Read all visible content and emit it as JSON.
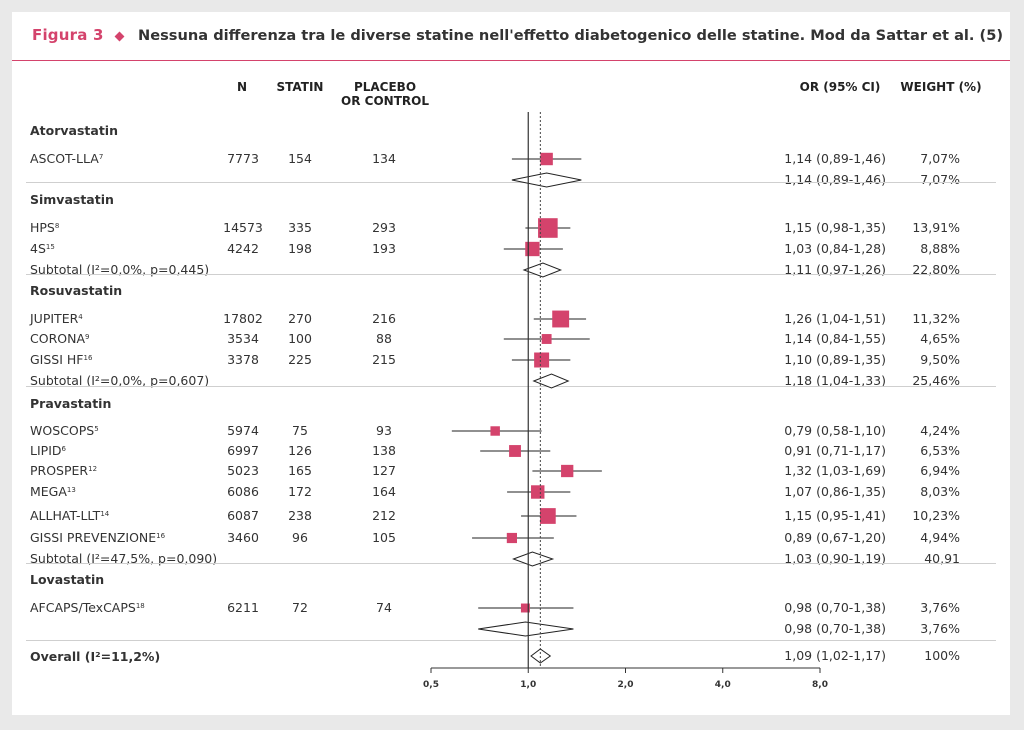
{
  "figure": {
    "label": "Figura 3",
    "title": "Nessuna differenza tra le diverse statine nell'effetto diabetogenico delle statine. Mod da Sattar et al. (5)"
  },
  "columns": {
    "n": "N",
    "statin": "STATIN",
    "placebo_line1": "PLACEBO",
    "placebo_line2": "OR CONTROL",
    "or": "OR (95% CI)",
    "weight": "WEIGHT (%)"
  },
  "groups": [
    {
      "name": "Atorvastatin",
      "studies": [
        {
          "name": "ASCOT-LLA",
          "ref": "7",
          "n": "7773",
          "statin": "154",
          "placebo": "134",
          "or": "1,14 (0,89-1,46)",
          "weight": "7,07%"
        }
      ],
      "subtotal": {
        "label": "",
        "or": "1,14 (0,89-1,46)",
        "weight": "7,07%"
      }
    },
    {
      "name": "Simvastatin",
      "studies": [
        {
          "name": "HPS",
          "ref": "8",
          "n": "14573",
          "statin": "335",
          "placebo": "293",
          "or": "1,15 (0,98-1,35)",
          "weight": "13,91%"
        },
        {
          "name": "4S",
          "ref": "15",
          "n": "4242",
          "statin": "198",
          "placebo": "193",
          "or": "1,03 (0,84-1,28)",
          "weight": "8,88%"
        }
      ],
      "subtotal": {
        "label": "Subtotal (I²=0,0%, p=0,445)",
        "or": "1,11 (0,97-1,26)",
        "weight": "22,80%"
      }
    },
    {
      "name": "Rosuvastatin",
      "studies": [
        {
          "name": "JUPITER",
          "ref": "4",
          "n": "17802",
          "statin": "270",
          "placebo": "216",
          "or": "1,26 (1,04-1,51)",
          "weight": "11,32%"
        },
        {
          "name": "CORONA",
          "ref": "9",
          "n": "3534",
          "statin": "100",
          "placebo": "88",
          "or": "1,14 (0,84-1,55)",
          "weight": "4,65%"
        },
        {
          "name": "GISSI HF",
          "ref": "16",
          "n": "3378",
          "statin": "225",
          "placebo": "215",
          "or": "1,10 (0,89-1,35)",
          "weight": "9,50%"
        }
      ],
      "subtotal": {
        "label": "Subtotal (I²=0,0%, p=0,607)",
        "or": "1,18 (1,04-1,33)",
        "weight": "25,46%"
      }
    },
    {
      "name": "Pravastatin",
      "studies": [
        {
          "name": "WOSCOPS",
          "ref": "5",
          "n": "5974",
          "statin": "75",
          "placebo": "93",
          "or": "0,79 (0,58-1,10)",
          "weight": "4,24%"
        },
        {
          "name": "LIPID",
          "ref": "6",
          "n": "6997",
          "statin": "126",
          "placebo": "138",
          "or": "0,91 (0,71-1,17)",
          "weight": "6,53%"
        },
        {
          "name": "PROSPER",
          "ref": "12",
          "n": "5023",
          "statin": "165",
          "placebo": "127",
          "or": "1,32 (1,03-1,69)",
          "weight": "6,94%"
        },
        {
          "name": "MEGA",
          "ref": "13",
          "n": "6086",
          "statin": "172",
          "placebo": "164",
          "or": "1,07 (0,86-1,35)",
          "weight": "8,03%"
        },
        {
          "name": "ALLHAT-LLT",
          "ref": "14",
          "n": "6087",
          "statin": "238",
          "placebo": "212",
          "or": "1,15 (0,95-1,41)",
          "weight": "10,23%"
        },
        {
          "name": "GISSI PREVENZIONE",
          "ref": "16",
          "n": "3460",
          "statin": "96",
          "placebo": "105",
          "or": "0,89 (0,67-1,20)",
          "weight": "4,94%"
        }
      ],
      "subtotal": {
        "label": "Subtotal (I²=47,5%, p=0,090)",
        "or": "1,03 (0,90-1,19)",
        "weight": "40,91"
      }
    },
    {
      "name": "Lovastatin",
      "studies": [
        {
          "name": "AFCAPS/TexCAPS",
          "ref": "18",
          "n": "6211",
          "statin": "72",
          "placebo": "74",
          "or": "0,98 (0,70-1,38)",
          "weight": "3,76%"
        }
      ],
      "subtotal": {
        "label": "",
        "or": "0,98 (0,70-1,38)",
        "weight": "3,76%"
      }
    }
  ],
  "overall": {
    "label": "Overall (I²=11,2%)",
    "or": "1,09 (1,02-1,17)",
    "weight": "100%"
  },
  "chart_data": {
    "type": "forest",
    "title": "Nessuna differenza tra le diverse statine nell'effetto diabetogenico delle statine. Mod da Sattar et al. (5)",
    "x_scale": "log",
    "x_ticks": [
      0.5,
      1.0,
      2.0,
      4.0,
      8.0
    ],
    "x_tick_labels": [
      "0,5",
      "1,0",
      "2,0",
      "4,0",
      "8,0"
    ],
    "reference_line": 1.0,
    "overall_line": 1.09,
    "studies": [
      {
        "name": "ASCOT-LLA",
        "or": 1.14,
        "lo": 0.89,
        "hi": 1.46,
        "weight": 7.07
      },
      {
        "name": "HPS",
        "or": 1.15,
        "lo": 0.98,
        "hi": 1.35,
        "weight": 13.91
      },
      {
        "name": "4S",
        "or": 1.03,
        "lo": 0.84,
        "hi": 1.28,
        "weight": 8.88
      },
      {
        "name": "JUPITER",
        "or": 1.26,
        "lo": 1.04,
        "hi": 1.51,
        "weight": 11.32
      },
      {
        "name": "CORONA",
        "or": 1.14,
        "lo": 0.84,
        "hi": 1.55,
        "weight": 4.65
      },
      {
        "name": "GISSI HF",
        "or": 1.1,
        "lo": 0.89,
        "hi": 1.35,
        "weight": 9.5
      },
      {
        "name": "WOSCOPS",
        "or": 0.79,
        "lo": 0.58,
        "hi": 1.1,
        "weight": 4.24
      },
      {
        "name": "LIPID",
        "or": 0.91,
        "lo": 0.71,
        "hi": 1.17,
        "weight": 6.53
      },
      {
        "name": "PROSPER",
        "or": 1.32,
        "lo": 1.03,
        "hi": 1.69,
        "weight": 6.94
      },
      {
        "name": "MEGA",
        "or": 1.07,
        "lo": 0.86,
        "hi": 1.35,
        "weight": 8.03
      },
      {
        "name": "ALLHAT-LLT",
        "or": 1.15,
        "lo": 0.95,
        "hi": 1.41,
        "weight": 10.23
      },
      {
        "name": "GISSI PREVENZIONE",
        "or": 0.89,
        "lo": 0.67,
        "hi": 1.2,
        "weight": 4.94
      },
      {
        "name": "AFCAPS/TexCAPS",
        "or": 0.98,
        "lo": 0.7,
        "hi": 1.38,
        "weight": 3.76
      }
    ],
    "subtotals": [
      {
        "group": "Atorvastatin",
        "or": 1.14,
        "lo": 0.89,
        "hi": 1.46
      },
      {
        "group": "Simvastatin",
        "or": 1.11,
        "lo": 0.97,
        "hi": 1.26
      },
      {
        "group": "Rosuvastatin",
        "or": 1.18,
        "lo": 1.04,
        "hi": 1.33
      },
      {
        "group": "Pravastatin",
        "or": 1.03,
        "lo": 0.9,
        "hi": 1.19
      },
      {
        "group": "Lovastatin",
        "or": 0.98,
        "lo": 0.7,
        "hi": 1.38
      }
    ],
    "overall": {
      "or": 1.09,
      "lo": 1.02,
      "hi": 1.17
    },
    "colors": {
      "square": "#d4436c",
      "line": "#222222",
      "accent": "#d4436c"
    }
  }
}
